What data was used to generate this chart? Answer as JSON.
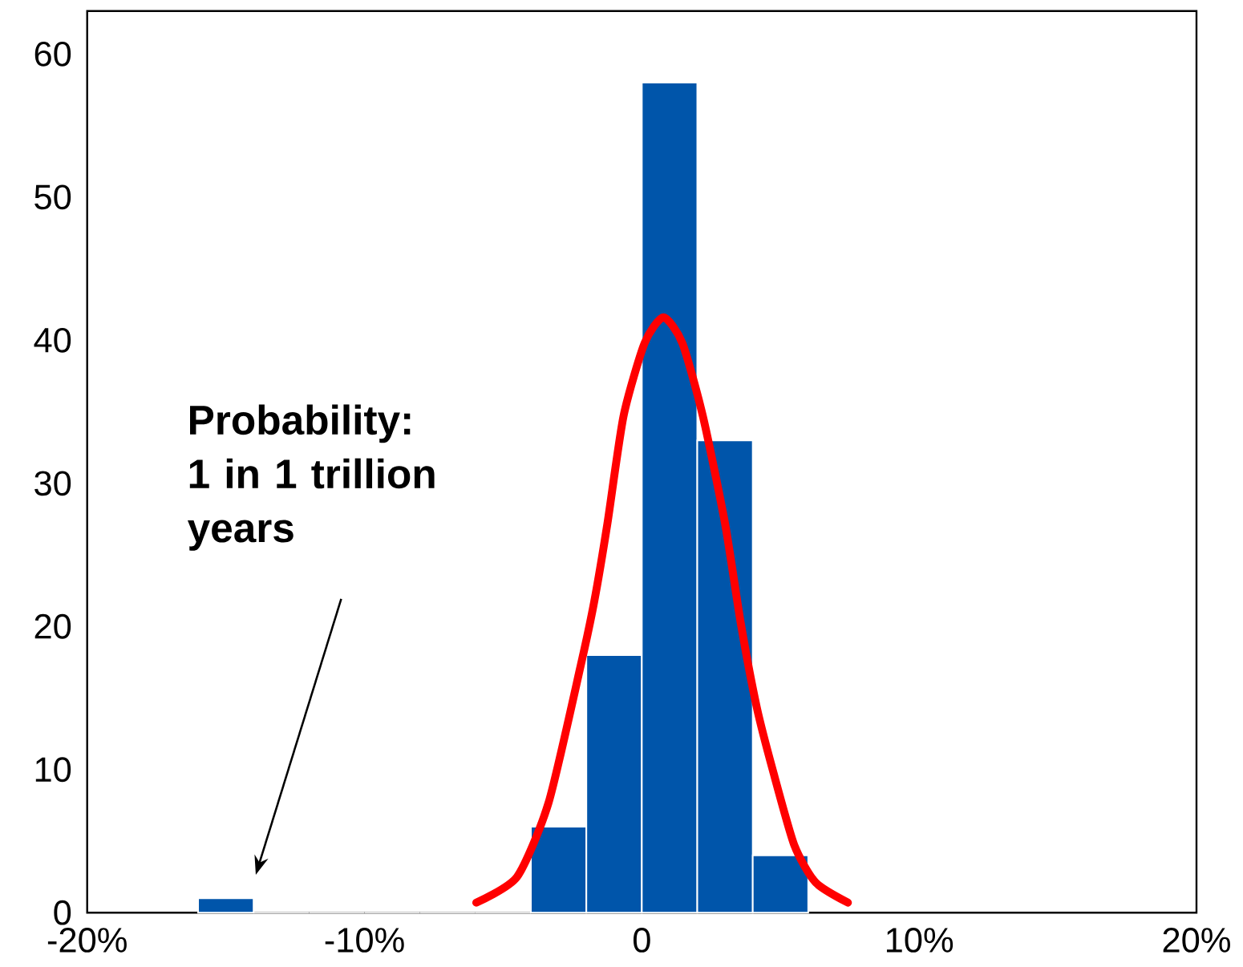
{
  "chart_data": {
    "type": "histogram",
    "bins": [
      -16,
      -14,
      -12,
      -10,
      -8,
      -6,
      -4,
      -2,
      0,
      2,
      4,
      6
    ],
    "values": [
      1,
      0,
      0,
      0,
      0,
      0,
      6,
      18,
      58,
      33,
      4
    ],
    "color": "#0055aa",
    "xlim": [
      -20,
      20
    ],
    "xticks": [
      {
        "value": -20,
        "label": "-20%"
      },
      {
        "value": -10,
        "label": "-10%"
      },
      {
        "value": 0,
        "label": "0"
      },
      {
        "value": 10,
        "label": "10%"
      },
      {
        "value": 20,
        "label": "20%"
      }
    ],
    "ylim": [
      0,
      63
    ],
    "yticks": [
      0,
      10,
      20,
      30,
      40,
      50,
      60
    ],
    "grid": false,
    "series": [
      {
        "type": "line",
        "color": "#ff0000",
        "x": [
          -5.97,
          -4.5,
          -3.36,
          -2.2,
          -1.72,
          -1.24,
          -0.66,
          0.1,
          0.78,
          1.46,
          2.2,
          3.0,
          3.57,
          4.15,
          4.73,
          5.5,
          6.27,
          7.43
        ],
        "values": [
          0.7,
          2.5,
          7.7,
          17.3,
          21.7,
          27.2,
          34.7,
          39.8,
          41.6,
          39.8,
          34.7,
          27.2,
          20.2,
          14.3,
          9.9,
          4.7,
          2.1,
          0.7
        ]
      }
    ],
    "annotations": [
      "Probability: 1 in 1 trillion years"
    ]
  }
}
